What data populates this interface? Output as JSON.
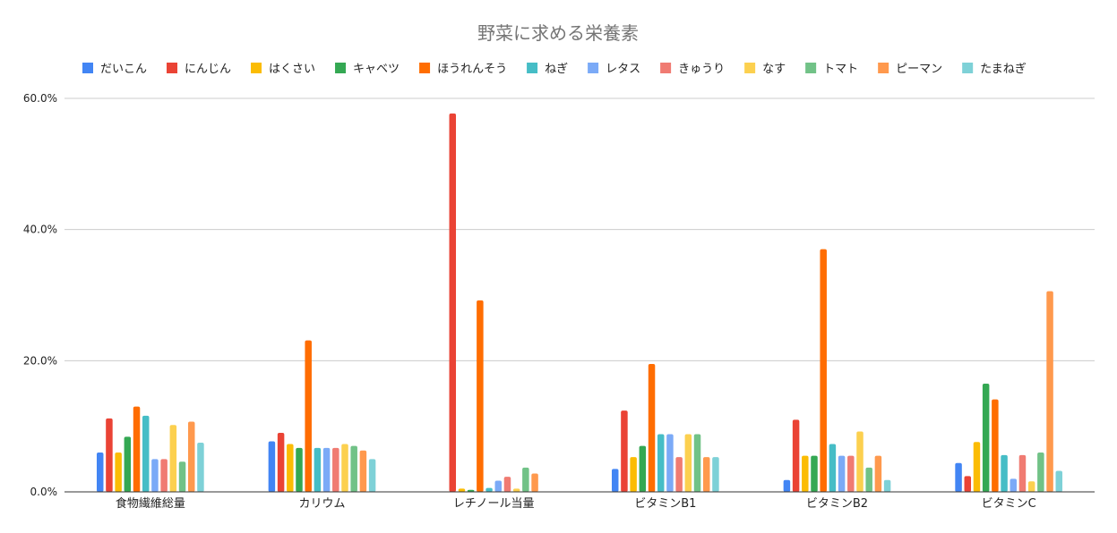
{
  "chart_data": {
    "type": "bar",
    "title": "野菜に求める栄養素",
    "xlabel": "",
    "ylabel": "",
    "ylim": [
      0,
      60
    ],
    "yticks": [
      "0.0%",
      "20.0%",
      "40.0%",
      "60.0%"
    ],
    "ytick_values": [
      0,
      20,
      40,
      60
    ],
    "grid": true,
    "legend_position": "top",
    "categories": [
      "食物繊維総量",
      "カリウム",
      "レチノール当量",
      "ビタミンB1",
      "ビタミンB2",
      "ビタミンC"
    ],
    "series": [
      {
        "name": "だいこん",
        "color": "#4285f4",
        "values": [
          6.0,
          7.7,
          0.0,
          3.5,
          1.8,
          4.4
        ]
      },
      {
        "name": "にんじん",
        "color": "#ea4335",
        "values": [
          11.2,
          9.0,
          57.7,
          12.4,
          11.0,
          2.4
        ]
      },
      {
        "name": "はくさい",
        "color": "#fbbc04",
        "values": [
          6.0,
          7.3,
          0.5,
          5.3,
          5.5,
          7.6
        ]
      },
      {
        "name": "キャベツ",
        "color": "#34a853",
        "values": [
          8.4,
          6.7,
          0.3,
          7.0,
          5.5,
          16.5
        ]
      },
      {
        "name": "ほうれんそう",
        "color": "#ff6d01",
        "values": [
          13.0,
          23.1,
          29.2,
          19.5,
          37.0,
          14.1
        ]
      },
      {
        "name": "ねぎ",
        "color": "#46bdc6",
        "values": [
          11.6,
          6.7,
          0.6,
          8.8,
          7.3,
          5.6
        ]
      },
      {
        "name": "レタス",
        "color": "#7baaf7",
        "values": [
          5.0,
          6.7,
          1.7,
          8.8,
          5.5,
          2.0
        ]
      },
      {
        "name": "きゅうり",
        "color": "#f07b72",
        "values": [
          5.0,
          6.7,
          2.3,
          5.3,
          5.5,
          5.6
        ]
      },
      {
        "name": "なす",
        "color": "#fcd04f",
        "values": [
          10.2,
          7.3,
          0.5,
          8.8,
          9.2,
          1.6
        ]
      },
      {
        "name": "トマト",
        "color": "#71c287",
        "values": [
          4.6,
          7.0,
          3.7,
          8.8,
          3.7,
          6.0
        ]
      },
      {
        "name": "ピーマン",
        "color": "#ff994d",
        "values": [
          10.7,
          6.3,
          2.8,
          5.3,
          5.5,
          30.6
        ]
      },
      {
        "name": "たまねぎ",
        "color": "#7ed1d7",
        "values": [
          7.5,
          5.0,
          0.0,
          5.3,
          1.8,
          3.2
        ]
      }
    ]
  }
}
